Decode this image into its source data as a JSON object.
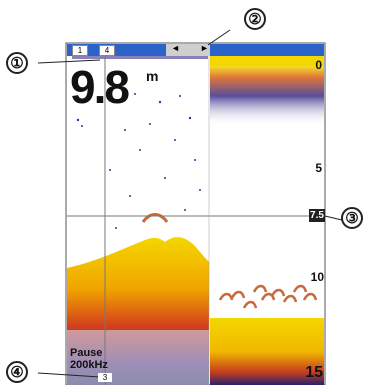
{
  "callouts": [
    "①",
    "②",
    "③",
    "④"
  ],
  "depth": {
    "value": "9.8",
    "unit": "m"
  },
  "scale": [
    "0",
    "5",
    "10",
    "15"
  ],
  "cursor_depth": "7.5",
  "status": {
    "mode": "Pause",
    "frequency": "200kHz"
  },
  "zoom_bar": {
    "left_arrow": "◄",
    "right_arrow": "►"
  },
  "corner_labels": {
    "top_a": "1",
    "top_b": "4",
    "bottom": "3"
  },
  "colors": {
    "screen_bg": "#ffffff",
    "zoom_bar": "#2b63c8",
    "zoom_window": "#cfcfcf",
    "strong_return": "#f4d600",
    "medium_return": "#e0621c",
    "weak_return": "#253d9a",
    "fish_arch": "#c86a3a",
    "crosshair": "#777777"
  }
}
